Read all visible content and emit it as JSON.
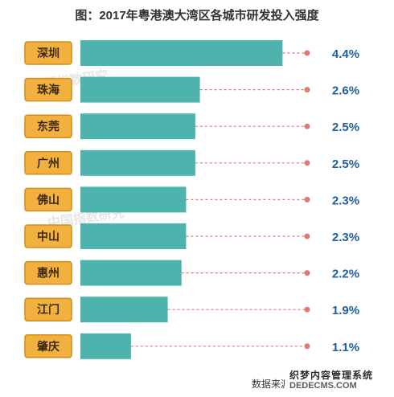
{
  "chart_data": {
    "type": "bar",
    "orientation": "horizontal",
    "title": "图：2017年粤港澳大湾区各城市研发投入强度",
    "categories": [
      "深圳",
      "珠海",
      "东莞",
      "广州",
      "佛山",
      "中山",
      "惠州",
      "江门",
      "肇庆"
    ],
    "values": [
      4.4,
      2.6,
      2.5,
      2.5,
      2.3,
      2.3,
      2.2,
      1.9,
      1.1
    ],
    "value_labels": [
      "4.4%",
      "2.6%",
      "2.5%",
      "2.5%",
      "2.3%",
      "2.3%",
      "2.2%",
      "1.9%",
      "1.1%"
    ],
    "xlim": [
      0,
      5.25
    ],
    "grid": false,
    "legend": "none"
  },
  "colors": {
    "bar": "#4fb3ad",
    "category_box": "#f2b03f",
    "category_border": "#d08d19",
    "leader_line": "#e07a70",
    "value_text": "#1f5f9a"
  },
  "source": "数据来源：广",
  "watermark_texts": [
    "中国指数研究",
    "中国指数研究"
  ],
  "corner_logo": {
    "line1": "织梦内容管理系统",
    "line2": "DEDECMS.COM"
  }
}
